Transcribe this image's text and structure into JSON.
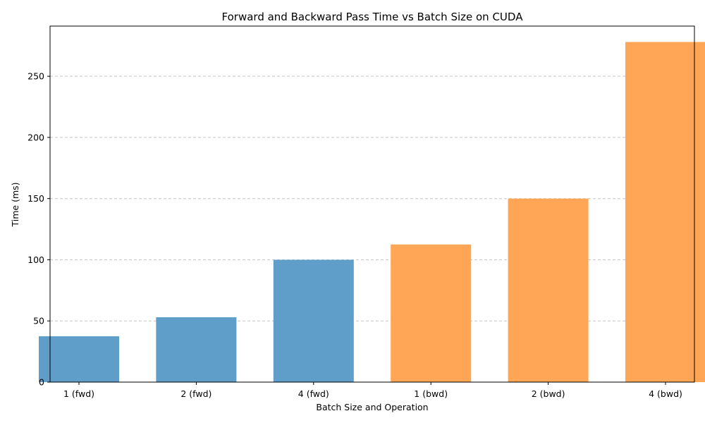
{
  "chart_data": {
    "type": "bar",
    "title": "Forward and Backward Pass Time vs Batch Size on CUDA",
    "xlabel": "Batch Size and Operation",
    "ylabel": "Time (ms)",
    "categories": [
      "1 (fwd)",
      "2 (fwd)",
      "4 (fwd)",
      "1 (bwd)",
      "2 (bwd)",
      "4 (bwd)"
    ],
    "values": [
      37.5,
      53,
      100,
      112.5,
      150,
      278
    ],
    "colors": [
      "#5f9ec9",
      "#5f9ec9",
      "#5f9ec9",
      "#ffa556",
      "#ffa556",
      "#ffa556"
    ],
    "ylim": [
      0,
      291
    ],
    "yticks": [
      0,
      50,
      100,
      150,
      200,
      250
    ],
    "grid": "y-dashed"
  }
}
